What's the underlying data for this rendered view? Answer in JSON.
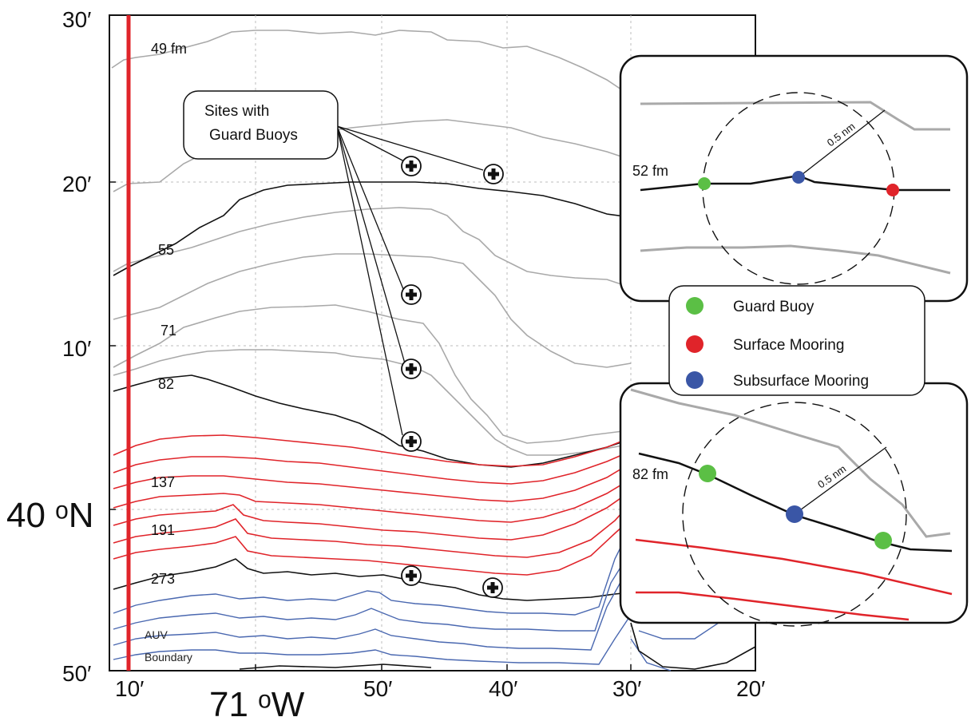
{
  "axes": {
    "y_ticks": [
      "30′",
      "20′",
      "10′",
      "50′"
    ],
    "x_ticks": [
      "10′",
      "50′",
      "40′",
      "30′",
      "20′"
    ],
    "lat_label": "40 ᵒN",
    "lon_label": "71 ᵒW"
  },
  "contours": {
    "labels": [
      "49 fm",
      "55",
      "71",
      "82",
      "137",
      "191",
      "273"
    ]
  },
  "auv_label": "AUV Boundary",
  "callout": {
    "line1": "Sites with",
    "line2": "Guard Buoys"
  },
  "legend": {
    "items": [
      {
        "label": "Guard Buoy",
        "color": "#5bbf45"
      },
      {
        "label": "Surface Mooring",
        "color": "#e0242a"
      },
      {
        "label": "Subsurface Mooring",
        "color": "#3a56a6"
      }
    ]
  },
  "inset_top": {
    "depth_label": "52 fm",
    "radius_label": "0.5 nm"
  },
  "inset_bottom": {
    "depth_label": "82 fm",
    "radius_label": "0.5 nm"
  },
  "colors": {
    "red_contour": "#e0242a",
    "blue_contour": "#4a68b0",
    "gray_contour": "#a9a9a9",
    "black_contour": "#111111",
    "auv_boundary": "#e0242a"
  }
}
